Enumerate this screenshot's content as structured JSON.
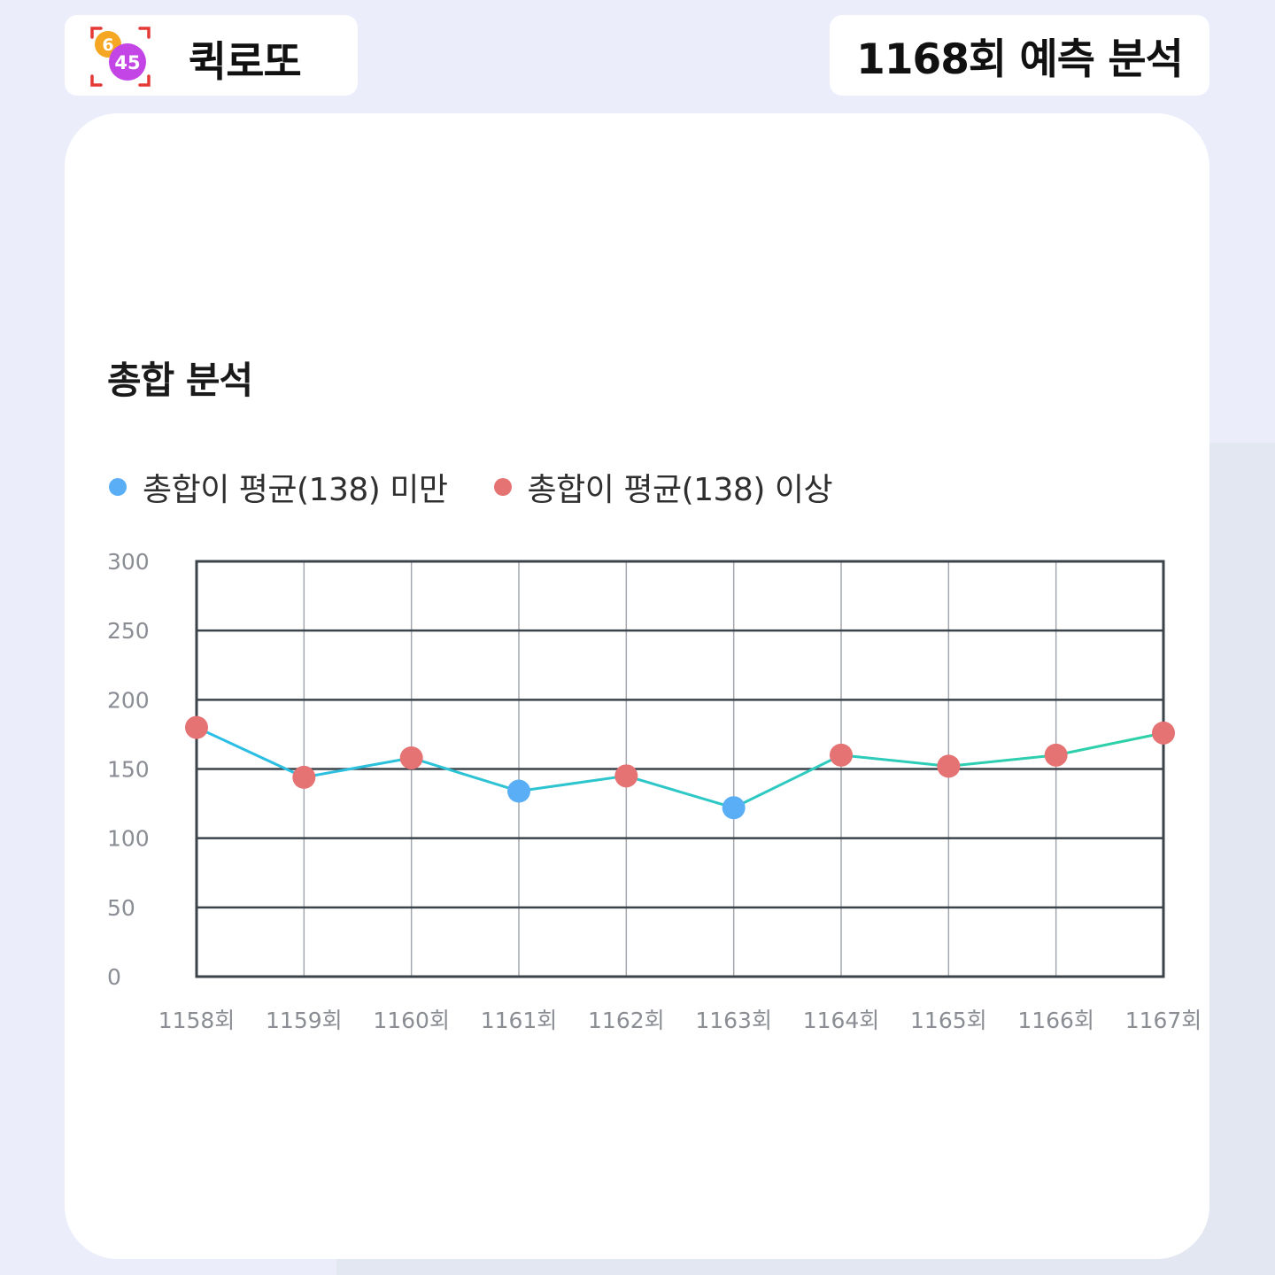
{
  "header": {
    "logo": {
      "top_number": "6",
      "bottom_number": "45",
      "icon": "lotto-ball-logo-icon",
      "colors": {
        "ball_top": "#f5a623",
        "ball_bottom": "#c445e6",
        "frame": "#e53935"
      }
    },
    "brand_name": "퀵로또",
    "round_title": "1168회 예측 분석"
  },
  "section_title": "총합 분석",
  "legend": [
    {
      "label": "총합이 평균(138) 미만",
      "color": "#5aaef6",
      "icon": "blue-dot-icon"
    },
    {
      "label": "총합이 평균(138) 이상",
      "color": "#e57373",
      "icon": "red-dot-icon"
    }
  ],
  "colors": {
    "page_background": "#ebedfb",
    "card_background": "#ffffff",
    "line_start": "#2bbde8",
    "line_end": "#2ed1a6",
    "below_average": "#5aaef6",
    "above_average": "#e57373"
  },
  "chart_data": {
    "type": "line",
    "title": "",
    "xlabel": "",
    "ylabel": "",
    "categories": [
      "1158회",
      "1159회",
      "1160회",
      "1161회",
      "1162회",
      "1163회",
      "1164회",
      "1165회",
      "1166회",
      "1167회"
    ],
    "values": [
      180,
      144,
      158,
      134,
      145,
      122,
      160,
      152,
      160,
      176
    ],
    "average": 138,
    "ylim": [
      0,
      300
    ],
    "yticks": [
      "0",
      "50",
      "100",
      "150",
      "200",
      "250",
      "300"
    ],
    "grid": true,
    "legend_position": "top-left"
  }
}
